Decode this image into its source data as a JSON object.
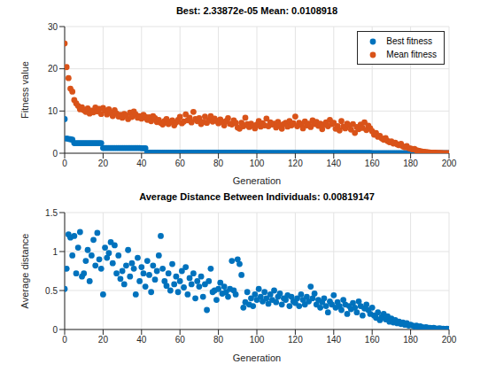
{
  "chart_data": [
    {
      "type": "scatter",
      "title": "Best: 2.33872e-05 Mean: 0.0108918",
      "x_label": "Generation",
      "y_label": "Fitness value",
      "x": [
        0,
        1,
        2,
        3,
        4,
        5,
        6,
        7,
        8,
        9,
        10,
        11,
        12,
        13,
        14,
        15,
        16,
        17,
        18,
        19,
        20,
        21,
        22,
        23,
        24,
        25,
        26,
        27,
        28,
        29,
        30,
        31,
        32,
        33,
        34,
        35,
        36,
        37,
        38,
        39,
        40,
        41,
        42,
        43,
        44,
        45,
        46,
        47,
        48,
        49,
        50,
        51,
        52,
        53,
        54,
        55,
        56,
        57,
        58,
        59,
        60,
        61,
        62,
        63,
        64,
        65,
        66,
        67,
        68,
        69,
        70,
        71,
        72,
        73,
        74,
        75,
        76,
        77,
        78,
        79,
        80,
        81,
        82,
        83,
        84,
        85,
        86,
        87,
        88,
        89,
        90,
        91,
        92,
        93,
        94,
        95,
        96,
        97,
        98,
        99,
        100,
        101,
        102,
        103,
        104,
        105,
        106,
        107,
        108,
        109,
        110,
        111,
        112,
        113,
        114,
        115,
        116,
        117,
        118,
        119,
        120,
        121,
        122,
        123,
        124,
        125,
        126,
        127,
        128,
        129,
        130,
        131,
        132,
        133,
        134,
        135,
        136,
        137,
        138,
        139,
        140,
        141,
        142,
        143,
        144,
        145,
        146,
        147,
        148,
        149,
        150,
        151,
        152,
        153,
        154,
        155,
        156,
        157,
        158,
        159,
        160,
        161,
        162,
        163,
        164,
        165,
        166,
        167,
        168,
        169,
        170,
        171,
        172,
        173,
        174,
        175,
        176,
        177,
        178,
        179,
        180,
        181,
        182,
        183,
        184,
        185,
        186,
        187,
        188,
        189,
        190,
        191,
        192,
        193,
        194,
        195,
        196,
        197,
        198,
        199,
        200
      ],
      "series": [
        {
          "name": "Best fitness",
          "color": "#0072bd",
          "values": [
            8.1,
            3.5,
            3.4,
            3.3,
            3.2,
            2.4,
            2.4,
            2.4,
            2.4,
            2.4,
            2.4,
            2.4,
            2.4,
            2.4,
            2.4,
            2.4,
            2.4,
            2.4,
            2.4,
            2.4,
            1.25,
            1.25,
            1.25,
            1.25,
            1.25,
            1.25,
            1.25,
            1.25,
            1.25,
            1.25,
            1.25,
            1.25,
            1.25,
            1.25,
            1.25,
            1.25,
            1.25,
            1.25,
            1.25,
            1.25,
            1.2,
            1.2,
            1.15,
            0.15,
            0.15,
            0.15,
            0.15,
            0.15,
            0.15,
            0.15,
            0.15,
            0.15,
            0.15,
            0.15,
            0.15,
            0.15,
            0.15,
            0.15,
            0.15,
            0.15,
            0.15,
            0.15,
            0.15,
            0.15,
            0.15,
            0.15,
            0.15,
            0.15,
            0.15,
            0.15,
            0.15,
            0.15,
            0.15,
            0.15,
            0.15,
            0.15,
            0.15,
            0.15,
            0.15,
            0.15,
            0.15,
            0.15,
            0.15,
            0.15,
            0.15,
            0.15,
            0.15,
            0.15,
            0.15,
            0.15,
            0.15,
            0.15,
            0.15,
            0.15,
            0.15,
            0.15,
            0.15,
            0.15,
            0.15,
            0.15,
            0.08,
            0.08,
            0.08,
            0.08,
            0.08,
            0.08,
            0.08,
            0.08,
            0.08,
            0.08,
            0.08,
            0.08,
            0.08,
            0.08,
            0.08,
            0.08,
            0.08,
            0.08,
            0.08,
            0.08,
            0.08,
            0.08,
            0.08,
            0.08,
            0.08,
            0.08,
            0.08,
            0.08,
            0.08,
            0.08,
            0.08,
            0.08,
            0.08,
            0.08,
            0.08,
            0.08,
            0.08,
            0.08,
            0.08,
            0.08,
            0.08,
            0.08,
            0.08,
            0.08,
            0.08,
            0.08,
            0.08,
            0.08,
            0.08,
            0.08,
            0.08,
            0.08,
            0.08,
            0.08,
            0.08,
            0.08,
            0.08,
            0.08,
            0.08,
            0.08,
            0.02,
            0.02,
            0.02,
            0.02,
            0.02,
            0.02,
            0.02,
            0.02,
            0.02,
            0.02,
            0.02,
            0.02,
            0.02,
            0.02,
            0.02,
            0.02,
            0.02,
            0.02,
            0.02,
            0.02,
            0.02,
            0.02,
            0.02,
            0.02,
            0.02,
            0.02,
            0.02,
            0.02,
            0.02,
            0.02,
            0.02,
            0.02,
            0.02,
            0.02,
            0.02,
            0.02,
            0.02,
            0.02,
            0.02,
            0.02,
            2.33872e-05
          ]
        },
        {
          "name": "Mean fitness",
          "color": "#d95319",
          "values": [
            26,
            20.4,
            17.8,
            15.3,
            14.6,
            12.6,
            11.8,
            11.2,
            10.4,
            10.9,
            10.2,
            9.8,
            10.6,
            9.4,
            10.1,
            9.7,
            10.8,
            9.9,
            10.5,
            9.3,
            10.7,
            10.1,
            9.2,
            10.4,
            9.6,
            8.8,
            10.2,
            9.4,
            8.7,
            9.1,
            8.4,
            9.3,
            8.9,
            8.1,
            9.6,
            8.6,
            9.9,
            9.2,
            8.4,
            8.8,
            8.2,
            9.1,
            8.6,
            7.9,
            8.5,
            7.6,
            8.8,
            8.3,
            7.4,
            7.9,
            7.2,
            6.8,
            7.6,
            8.1,
            6.9,
            7.4,
            7.8,
            6.6,
            7.3,
            7.9,
            8.6,
            7.1,
            7.5,
            9.2,
            7.8,
            8.4,
            7.3,
            9.8,
            8.1,
            7.6,
            8.3,
            6.9,
            7.4,
            8.7,
            7.2,
            7.9,
            8.8,
            7.5,
            8.2,
            7.7,
            7.1,
            8.0,
            7.4,
            6.6,
            7.6,
            8.3,
            7.0,
            6.8,
            7.8,
            7.2,
            6.1,
            5.8,
            7.2,
            6.4,
            8.4,
            6.9,
            6.2,
            7.0,
            6.5,
            5.9,
            6.8,
            7.6,
            6.3,
            7.1,
            6.6,
            8.2,
            6.4,
            7.3,
            6.8,
            7.0,
            6.1,
            7.4,
            6.7,
            5.8,
            6.9,
            7.2,
            6.3,
            7.6,
            6.6,
            7.1,
            8.7,
            6.4,
            7.2,
            6.8,
            5.9,
            7.5,
            6.6,
            7.0,
            6.2,
            7.8,
            6.9,
            7.4,
            6.5,
            7.0,
            5.7,
            6.8,
            7.3,
            6.4,
            7.9,
            6.9,
            7.2,
            5.8,
            6.4,
            5.4,
            7.6,
            6.3,
            5.9,
            7.0,
            6.6,
            5.6,
            6.9,
            4.8,
            6.2,
            5.7,
            6.8,
            6.0,
            7.3,
            5.5,
            6.5,
            5.9,
            5.2,
            4.4,
            4.8,
            3.9,
            4.1,
            3.5,
            3.2,
            3.6,
            2.9,
            2.6,
            2.8,
            2.3,
            2.5,
            2.1,
            1.9,
            2.2,
            1.6,
            1.4,
            1.7,
            1.2,
            1.1,
            0.9,
            1.0,
            0.7,
            0.6,
            0.5,
            0.4,
            0.35,
            0.3,
            0.22,
            0.18,
            0.15,
            0.12,
            0.1,
            0.08,
            0.06,
            0.05,
            0.03,
            0.02,
            0.015,
            0.0108918
          ]
        }
      ],
      "xlim": [
        0,
        200
      ],
      "xticks": [
        0,
        20,
        40,
        60,
        80,
        100,
        120,
        140,
        160,
        180,
        200
      ],
      "ylim": [
        0,
        30
      ],
      "yticks": [
        0,
        10,
        20,
        30
      ],
      "grid": true,
      "legend": "northeast",
      "marker": "circle"
    },
    {
      "type": "scatter",
      "title": "Average Distance Between Individuals: 0.00819147",
      "x_label": "Generation",
      "y_label": "Average distance",
      "x": [
        0,
        1,
        2,
        3,
        4,
        5,
        6,
        7,
        8,
        9,
        10,
        11,
        12,
        13,
        14,
        15,
        16,
        17,
        18,
        19,
        20,
        21,
        22,
        23,
        24,
        25,
        26,
        27,
        28,
        29,
        30,
        31,
        32,
        33,
        34,
        35,
        36,
        37,
        38,
        39,
        40,
        41,
        42,
        43,
        44,
        45,
        46,
        47,
        48,
        49,
        50,
        51,
        52,
        53,
        54,
        55,
        56,
        57,
        58,
        59,
        60,
        61,
        62,
        63,
        64,
        65,
        66,
        67,
        68,
        69,
        70,
        71,
        72,
        73,
        74,
        75,
        76,
        77,
        78,
        79,
        80,
        81,
        82,
        83,
        84,
        85,
        86,
        87,
        88,
        89,
        90,
        91,
        92,
        93,
        94,
        95,
        96,
        97,
        98,
        99,
        100,
        101,
        102,
        103,
        104,
        105,
        106,
        107,
        108,
        109,
        110,
        111,
        112,
        113,
        114,
        115,
        116,
        117,
        118,
        119,
        120,
        121,
        122,
        123,
        124,
        125,
        126,
        127,
        128,
        129,
        130,
        131,
        132,
        133,
        134,
        135,
        136,
        137,
        138,
        139,
        140,
        141,
        142,
        143,
        144,
        145,
        146,
        147,
        148,
        149,
        150,
        151,
        152,
        153,
        154,
        155,
        156,
        157,
        158,
        159,
        160,
        161,
        162,
        163,
        164,
        165,
        166,
        167,
        168,
        169,
        170,
        171,
        172,
        173,
        174,
        175,
        176,
        177,
        178,
        179,
        180,
        181,
        182,
        183,
        184,
        185,
        186,
        187,
        188,
        189,
        190,
        191,
        192,
        193,
        194,
        195,
        196,
        197,
        198,
        199,
        200
      ],
      "series": [
        {
          "name": "Average distance",
          "color": "#0072bd",
          "values": [
            0.52,
            0.78,
            1.22,
            1.18,
            0.95,
            1.2,
            0.72,
            1.05,
            1.25,
            0.68,
            0.72,
            0.88,
            1.02,
            0.62,
            0.95,
            1.15,
            0.82,
            1.24,
            0.9,
            0.78,
            0.45,
            1.05,
            0.92,
            0.98,
            1.12,
            0.85,
            1.08,
            0.72,
            0.95,
            0.65,
            0.75,
            0.58,
            0.82,
            1.02,
            0.68,
            0.85,
            0.78,
            0.45,
            0.92,
            0.62,
            0.8,
            0.72,
            0.55,
            0.88,
            0.7,
            0.48,
            0.82,
            0.64,
            0.75,
            0.95,
            1.2,
            0.78,
            0.62,
            0.56,
            0.72,
            0.5,
            0.84,
            0.58,
            0.68,
            0.48,
            0.62,
            0.75,
            0.54,
            0.8,
            0.45,
            0.66,
            0.58,
            0.72,
            0.4,
            0.62,
            0.55,
            0.68,
            0.42,
            0.58,
            0.25,
            0.62,
            0.78,
            0.48,
            0.5,
            0.38,
            0.52,
            0.6,
            0.46,
            0.55,
            0.48,
            0.42,
            0.52,
            0.88,
            0.5,
            0.45,
            0.9,
            0.84,
            0.7,
            0.28,
            0.35,
            0.48,
            0.32,
            0.4,
            0.3,
            0.45,
            0.38,
            0.52,
            0.42,
            0.36,
            0.48,
            0.4,
            0.33,
            0.45,
            0.38,
            0.5,
            0.35,
            0.42,
            0.46,
            0.32,
            0.4,
            0.38,
            0.44,
            0.3,
            0.42,
            0.36,
            0.34,
            0.4,
            0.3,
            0.45,
            0.38,
            0.32,
            0.42,
            0.36,
            0.55,
            0.4,
            0.46,
            0.32,
            0.38,
            0.28,
            0.35,
            0.4,
            0.3,
            0.22,
            0.36,
            0.32,
            0.44,
            0.28,
            0.35,
            0.3,
            0.25,
            0.38,
            0.32,
            0.2,
            0.3,
            0.26,
            0.34,
            0.28,
            0.22,
            0.36,
            0.3,
            0.18,
            0.27,
            0.32,
            0.25,
            0.2,
            0.28,
            0.18,
            0.15,
            0.22,
            0.12,
            0.16,
            0.2,
            0.13,
            0.17,
            0.1,
            0.14,
            0.09,
            0.12,
            0.08,
            0.1,
            0.07,
            0.09,
            0.06,
            0.08,
            0.05,
            0.06,
            0.05,
            0.04,
            0.05,
            0.03,
            0.04,
            0.03,
            0.02,
            0.03,
            0.02,
            0.02,
            0.015,
            0.02,
            0.012,
            0.01,
            0.015,
            0.01,
            0.01,
            0.008,
            0.01,
            0.00819147
          ]
        }
      ],
      "xlim": [
        0,
        200
      ],
      "xticks": [
        0,
        20,
        40,
        60,
        80,
        100,
        120,
        140,
        160,
        180,
        200
      ],
      "ylim": [
        0,
        1.5
      ],
      "yticks": [
        0,
        0.5,
        1,
        1.5
      ],
      "grid": true,
      "marker": "circle"
    }
  ]
}
